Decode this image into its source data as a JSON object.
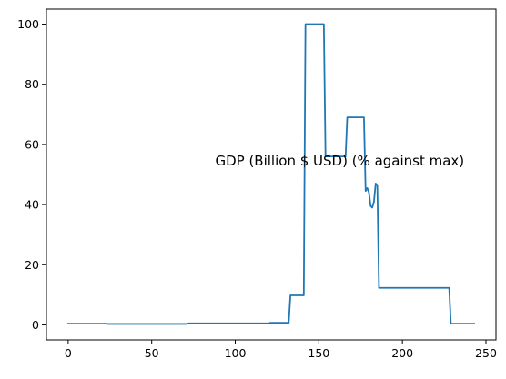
{
  "chart_data": {
    "type": "line",
    "title": "",
    "xlabel": "",
    "ylabel": "",
    "xlim": [
      -13,
      256
    ],
    "ylim": [
      -5,
      105
    ],
    "grid": false,
    "xticks": [
      0,
      50,
      100,
      150,
      200,
      250
    ],
    "xtick_labels": [
      "0",
      "50",
      "100",
      "150",
      "200",
      "250"
    ],
    "yticks": [
      0,
      20,
      40,
      60,
      80,
      100
    ],
    "ytick_labels": [
      "0",
      "20",
      "40",
      "60",
      "80",
      "100"
    ],
    "annotation": {
      "text": "GDP (Billion $ USD)  (% against max)",
      "x": 88,
      "y": 53
    },
    "series": [
      {
        "color": "#1f77b4",
        "x": [
          0,
          23,
          24,
          71,
          72,
          120,
          121,
          132,
          133,
          141,
          142,
          153,
          154,
          166,
          167,
          177,
          178,
          179,
          180,
          181,
          182,
          183,
          184,
          185,
          186,
          187,
          228,
          229,
          243
        ],
        "y": [
          0.4,
          0.4,
          0.3,
          0.3,
          0.5,
          0.5,
          0.7,
          0.7,
          9.8,
          9.8,
          100,
          100,
          56,
          56,
          69,
          69,
          44.5,
          45.5,
          44,
          39.5,
          39,
          41,
          47,
          46.5,
          12.3,
          12.3,
          12.3,
          0.4,
          0.4
        ]
      }
    ]
  }
}
